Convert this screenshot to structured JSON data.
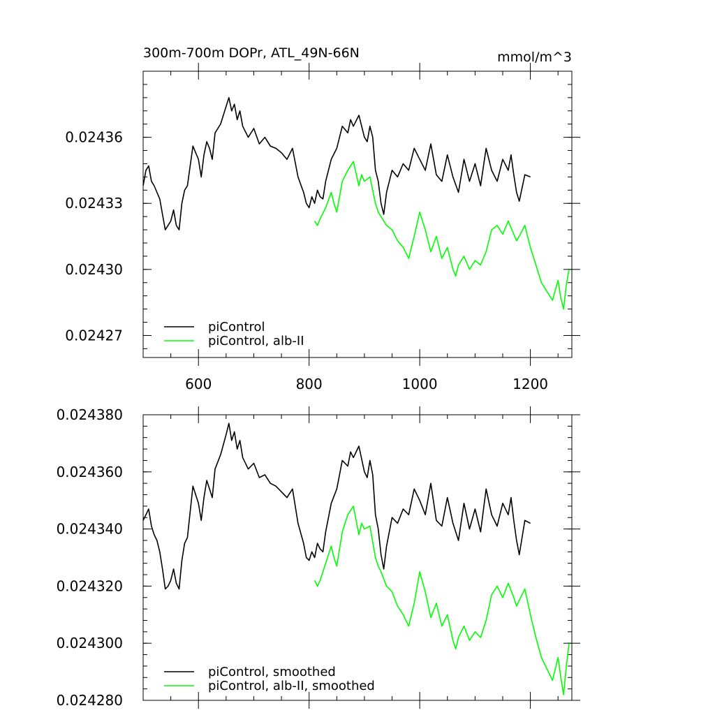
{
  "chart_data": [
    {
      "type": "line",
      "title": "300m-700m DOPr, ATL_49N-66N",
      "units": "mmol/m^3",
      "xlim": [
        500,
        1275
      ],
      "ylim": [
        0.02426,
        0.02439
      ],
      "x_ticks": [
        600,
        800,
        1000,
        1200
      ],
      "x_tick_labels": [
        "600",
        "800",
        "1000",
        "1200"
      ],
      "y_ticks": [
        0.02427,
        0.0243,
        0.02433,
        0.02436
      ],
      "y_tick_labels": [
        "0.02427",
        "0.02430",
        "0.02433",
        "0.02436"
      ],
      "legend_position": "bottom-left",
      "series": [
        {
          "name": "piControl",
          "color": "#000000",
          "x": [
            500,
            505,
            510,
            515,
            520,
            525,
            530,
            535,
            540,
            545,
            550,
            555,
            560,
            565,
            570,
            575,
            580,
            590,
            600,
            605,
            610,
            615,
            620,
            625,
            630,
            640,
            650,
            655,
            660,
            665,
            670,
            675,
            680,
            690,
            700,
            710,
            720,
            730,
            740,
            750,
            760,
            770,
            780,
            790,
            795,
            800,
            805,
            810,
            815,
            820,
            825,
            830,
            840,
            850,
            855,
            860,
            870,
            875,
            880,
            890,
            900,
            905,
            910,
            915,
            920,
            925,
            930,
            935,
            940,
            950,
            960,
            970,
            980,
            990,
            1000,
            1010,
            1020,
            1030,
            1040,
            1050,
            1060,
            1070,
            1080,
            1090,
            1100,
            1110,
            1120,
            1130,
            1140,
            1150,
            1160,
            1165,
            1170,
            1175,
            1180,
            1190,
            1200
          ],
          "y": [
            0.024338,
            0.024345,
            0.024347,
            0.02434,
            0.024338,
            0.024335,
            0.024332,
            0.024325,
            0.024318,
            0.02432,
            0.024322,
            0.024327,
            0.02432,
            0.024318,
            0.02433,
            0.024336,
            0.024338,
            0.024356,
            0.02435,
            0.024342,
            0.024352,
            0.024358,
            0.024355,
            0.02435,
            0.024362,
            0.024366,
            0.024374,
            0.024378,
            0.024372,
            0.024375,
            0.024368,
            0.024372,
            0.024365,
            0.02436,
            0.024364,
            0.024357,
            0.02436,
            0.024356,
            0.024355,
            0.024353,
            0.02435,
            0.024355,
            0.024342,
            0.024335,
            0.02433,
            0.024328,
            0.024333,
            0.02433,
            0.024336,
            0.024333,
            0.024332,
            0.02434,
            0.02435,
            0.024355,
            0.02436,
            0.024365,
            0.024362,
            0.024368,
            0.024365,
            0.02437,
            0.02436,
            0.024358,
            0.024365,
            0.02436,
            0.024345,
            0.02434,
            0.02433,
            0.024325,
            0.024335,
            0.024345,
            0.024342,
            0.024348,
            0.024345,
            0.024355,
            0.02435,
            0.024345,
            0.024357,
            0.024343,
            0.02434,
            0.024352,
            0.024342,
            0.024335,
            0.02435,
            0.02434,
            0.024348,
            0.024338,
            0.024355,
            0.024345,
            0.02434,
            0.02435,
            0.024345,
            0.024352,
            0.024343,
            0.024335,
            0.024331,
            0.024343,
            0.024342
          ]
        },
        {
          "name": "piControl, alb-II",
          "color": "#00ff00",
          "x": [
            810,
            815,
            820,
            830,
            840,
            845,
            850,
            860,
            870,
            880,
            890,
            895,
            900,
            910,
            920,
            925,
            930,
            940,
            950,
            960,
            970,
            980,
            990,
            1000,
            1010,
            1020,
            1030,
            1040,
            1050,
            1060,
            1065,
            1070,
            1080,
            1090,
            1100,
            1110,
            1120,
            1130,
            1140,
            1150,
            1160,
            1170,
            1175,
            1180,
            1190,
            1200,
            1210,
            1220,
            1230,
            1240,
            1250,
            1255,
            1260,
            1265,
            1270
          ],
          "y": [
            0.024322,
            0.02432,
            0.024323,
            0.024328,
            0.024335,
            0.02433,
            0.024326,
            0.02434,
            0.024345,
            0.024349,
            0.024338,
            0.024343,
            0.02434,
            0.024342,
            0.02433,
            0.024326,
            0.024324,
            0.02432,
            0.024318,
            0.024313,
            0.02431,
            0.024305,
            0.024315,
            0.024326,
            0.024318,
            0.024308,
            0.024315,
            0.024305,
            0.02431,
            0.0243,
            0.024297,
            0.024302,
            0.024306,
            0.0243,
            0.024304,
            0.024302,
            0.024308,
            0.024318,
            0.02432,
            0.024316,
            0.024322,
            0.024316,
            0.024313,
            0.024315,
            0.02432,
            0.02431,
            0.024302,
            0.024294,
            0.02429,
            0.024286,
            0.024295,
            0.024287,
            0.024282,
            0.024293,
            0.0243
          ]
        }
      ]
    },
    {
      "type": "line",
      "xlim": [
        500,
        1275
      ],
      "ylim": [
        0.02428,
        0.02438
      ],
      "x_ticks": [
        600,
        800,
        1000,
        1200
      ],
      "y_ticks": [
        0.02428,
        0.0243,
        0.02432,
        0.02434,
        0.02436,
        0.02438
      ],
      "y_tick_labels": [
        "0.024280",
        "0.024300",
        "0.024320",
        "0.024340",
        "0.024360",
        "0.024380"
      ],
      "legend_position": "bottom-left",
      "series": [
        {
          "name": "piControl, smoothed",
          "color": "#000000",
          "x": [
            500,
            505,
            510,
            515,
            520,
            525,
            530,
            535,
            540,
            545,
            550,
            555,
            560,
            565,
            570,
            575,
            580,
            590,
            600,
            605,
            610,
            615,
            620,
            625,
            630,
            640,
            650,
            655,
            660,
            665,
            670,
            675,
            680,
            690,
            700,
            710,
            720,
            730,
            740,
            750,
            760,
            770,
            780,
            790,
            795,
            800,
            805,
            810,
            815,
            820,
            825,
            830,
            840,
            850,
            855,
            860,
            870,
            875,
            880,
            890,
            900,
            905,
            910,
            915,
            920,
            925,
            930,
            935,
            940,
            950,
            960,
            970,
            980,
            990,
            1000,
            1010,
            1020,
            1030,
            1040,
            1050,
            1060,
            1070,
            1080,
            1090,
            1100,
            1110,
            1120,
            1130,
            1140,
            1150,
            1160,
            1165,
            1170,
            1175,
            1180,
            1190,
            1200
          ],
          "y": [
            0.024343,
            0.024345,
            0.024347,
            0.024341,
            0.024338,
            0.024336,
            0.024332,
            0.024326,
            0.024319,
            0.02432,
            0.024322,
            0.024326,
            0.024321,
            0.024319,
            0.024329,
            0.024335,
            0.024337,
            0.024355,
            0.024349,
            0.024343,
            0.024351,
            0.024357,
            0.024354,
            0.024351,
            0.024361,
            0.024366,
            0.024373,
            0.024377,
            0.024371,
            0.024374,
            0.024368,
            0.024371,
            0.024365,
            0.024361,
            0.024363,
            0.024358,
            0.024359,
            0.024356,
            0.024355,
            0.024353,
            0.024351,
            0.024354,
            0.024342,
            0.024335,
            0.02433,
            0.024329,
            0.024332,
            0.02433,
            0.024335,
            0.024333,
            0.024332,
            0.024339,
            0.024349,
            0.024354,
            0.024359,
            0.024364,
            0.024362,
            0.024367,
            0.024365,
            0.024369,
            0.02436,
            0.024358,
            0.024364,
            0.024359,
            0.024345,
            0.02434,
            0.024331,
            0.024326,
            0.024334,
            0.024344,
            0.024342,
            0.024347,
            0.024345,
            0.024354,
            0.02435,
            0.024345,
            0.024356,
            0.024343,
            0.024341,
            0.024351,
            0.024342,
            0.024336,
            0.024349,
            0.02434,
            0.024347,
            0.024339,
            0.024354,
            0.024345,
            0.024341,
            0.024349,
            0.024345,
            0.024351,
            0.024343,
            0.024336,
            0.024331,
            0.024343,
            0.024342
          ]
        },
        {
          "name": "piControl, alb-II, smoothed",
          "color": "#00ff00",
          "x": [
            810,
            815,
            820,
            830,
            840,
            845,
            850,
            860,
            870,
            880,
            890,
            895,
            900,
            910,
            920,
            925,
            930,
            940,
            950,
            960,
            970,
            980,
            990,
            1000,
            1010,
            1020,
            1030,
            1040,
            1050,
            1060,
            1065,
            1070,
            1080,
            1090,
            1100,
            1110,
            1120,
            1130,
            1140,
            1150,
            1160,
            1170,
            1175,
            1180,
            1190,
            1200,
            1210,
            1220,
            1230,
            1240,
            1250,
            1255,
            1260,
            1265,
            1270
          ],
          "y": [
            0.024322,
            0.02432,
            0.024322,
            0.024328,
            0.024334,
            0.02433,
            0.024327,
            0.024339,
            0.024345,
            0.024348,
            0.024338,
            0.024342,
            0.02434,
            0.024341,
            0.02433,
            0.024327,
            0.024325,
            0.02432,
            0.024318,
            0.024313,
            0.02431,
            0.024306,
            0.024314,
            0.024325,
            0.024318,
            0.024309,
            0.024314,
            0.024306,
            0.02431,
            0.024301,
            0.024298,
            0.024302,
            0.024306,
            0.024301,
            0.024304,
            0.024302,
            0.024308,
            0.024317,
            0.02432,
            0.024316,
            0.024321,
            0.024316,
            0.024313,
            0.024315,
            0.024319,
            0.02431,
            0.024302,
            0.024295,
            0.024291,
            0.024287,
            0.024295,
            0.024288,
            0.024282,
            0.024292,
            0.0243
          ]
        }
      ]
    }
  ]
}
